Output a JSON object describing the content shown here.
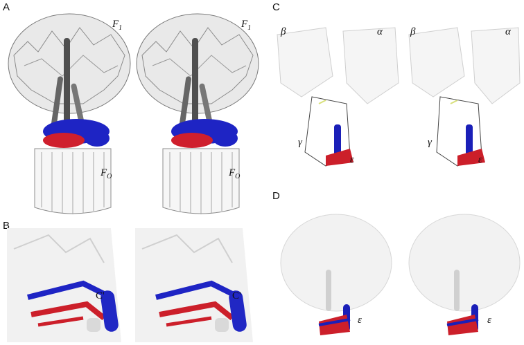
{
  "panels": {
    "a": {
      "letter": "A",
      "f1": "F",
      "f1_sub": "1",
      "fo": "F",
      "fo_sub": "O"
    },
    "b": {
      "letter": "B",
      "c_term": "C'"
    },
    "c": {
      "letter": "C",
      "beta": "β",
      "alpha": "α",
      "gamma": "γ",
      "epsilon": "ε"
    },
    "d": {
      "letter": "D",
      "epsilon": "ε"
    }
  },
  "colors": {
    "backbone_dark": "#555555",
    "backbone_light": "#cfcfcf",
    "helix_grey": "#6b6b6b",
    "epsilon_blue": "#1a1fb8",
    "epsilon_red": "#cc1f2a",
    "highlight_yellow": "#d8e07a"
  }
}
